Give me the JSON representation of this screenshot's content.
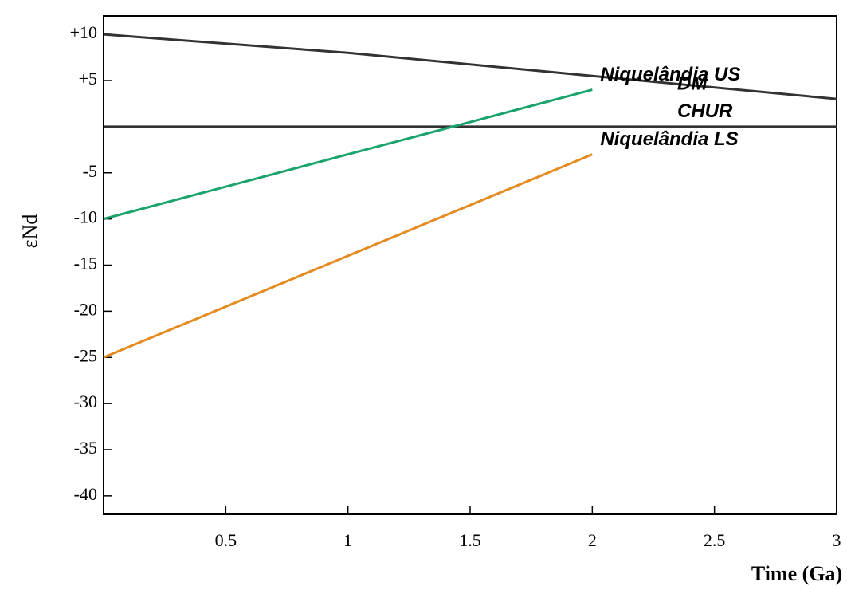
{
  "chart_data": {
    "type": "line",
    "y_label": "εNd",
    "x_label": "Time (Ga)",
    "x": [
      0,
      1,
      2,
      3
    ],
    "series": [
      {
        "name": "DM",
        "color": "#333333",
        "values": [
          10,
          8,
          5.5,
          3
        ]
      },
      {
        "name": "CHUR",
        "color": "#333333",
        "values": [
          0,
          0,
          0,
          0
        ]
      },
      {
        "name": "Niquelândia US",
        "color": "#1aa36b",
        "values": [
          -10,
          -3,
          4,
          null
        ]
      },
      {
        "name": "Niquelândia LS",
        "color": "#e58a1f",
        "values": [
          -25,
          -14,
          -3,
          null
        ]
      }
    ],
    "xlim": [
      0,
      3
    ],
    "xticks": [
      0.5,
      1,
      1.5,
      2,
      2.5,
      3
    ],
    "ylim": [
      -42,
      12
    ],
    "yticks": [
      {
        "value": 10,
        "label": "+10"
      },
      {
        "value": 5,
        "label": "+5"
      },
      -5,
      -10,
      -15,
      -20,
      -25,
      -30,
      -35,
      -40
    ]
  }
}
